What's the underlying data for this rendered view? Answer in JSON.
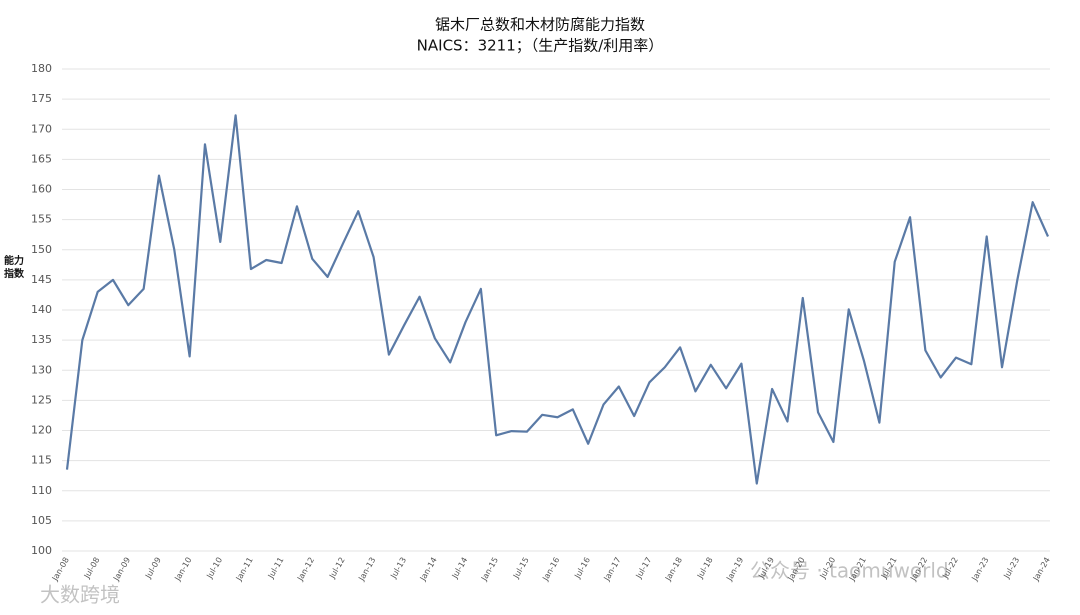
{
  "chart_data": {
    "type": "line",
    "title": "锯木厂总数和木材防腐能力指数",
    "subtitle": "NAICS：3211；（生产指数/利用率）",
    "y_label": "能力指数",
    "categories": [
      "Jan-08",
      null,
      "Jul-08",
      null,
      "Jan-09",
      null,
      "Jul-09",
      null,
      "Jan-10",
      null,
      "Jul-10",
      null,
      "Jan-11",
      null,
      "Jul-11",
      null,
      "Jan-12",
      null,
      "Jul-12",
      null,
      "Jan-13",
      null,
      "Jul-13",
      null,
      "Jan-14",
      null,
      "Jul-14",
      null,
      "Jan-15",
      null,
      "Jul-15",
      null,
      "Jan-16",
      null,
      "Jul-16",
      null,
      "Jan-17",
      null,
      "Jul-17",
      null,
      "Jan-18",
      null,
      "Jul-18",
      null,
      "Jan-19",
      null,
      "Jul-19",
      null,
      "Jan-20",
      null,
      "Jul-20",
      null,
      "Jan-21",
      null,
      "Jul-21",
      null,
      "Jan-22",
      null,
      "Jul-22",
      null,
      "Jan-23",
      null,
      "Jul-23",
      null,
      "Jan-24"
    ],
    "values": [
      113.5,
      135,
      143,
      145,
      140.8,
      143.5,
      162.3,
      150,
      132.3,
      167.5,
      151.3,
      172.3,
      146.8,
      148.3,
      147.8,
      157.2,
      148.5,
      145.5,
      151,
      156.4,
      148.8,
      132.6,
      137.5,
      142.2,
      135.3,
      131.3,
      138,
      143.5,
      119.2,
      119.9,
      119.8,
      122.6,
      122.2,
      123.5,
      117.8,
      124.3,
      127.3,
      122.4,
      128,
      130.5,
      133.8,
      126.5,
      130.9,
      127,
      131.1,
      111.2,
      126.9,
      121.5,
      142,
      123,
      118.1,
      140.1,
      131.5,
      121.3,
      148,
      155.4,
      133.3,
      128.8,
      132.1,
      131,
      152.2,
      130.5,
      145,
      157.9,
      152.2
    ],
    "color": "#5a7aa6",
    "ylim": [
      100,
      180
    ],
    "yticks": [
      100,
      105,
      110,
      115,
      120,
      125,
      130,
      135,
      140,
      145,
      150,
      155,
      160,
      165,
      170,
      175,
      180
    ],
    "grid": true,
    "watermarks": [
      "大数跨境",
      "公众号 · taomuworld"
    ]
  }
}
